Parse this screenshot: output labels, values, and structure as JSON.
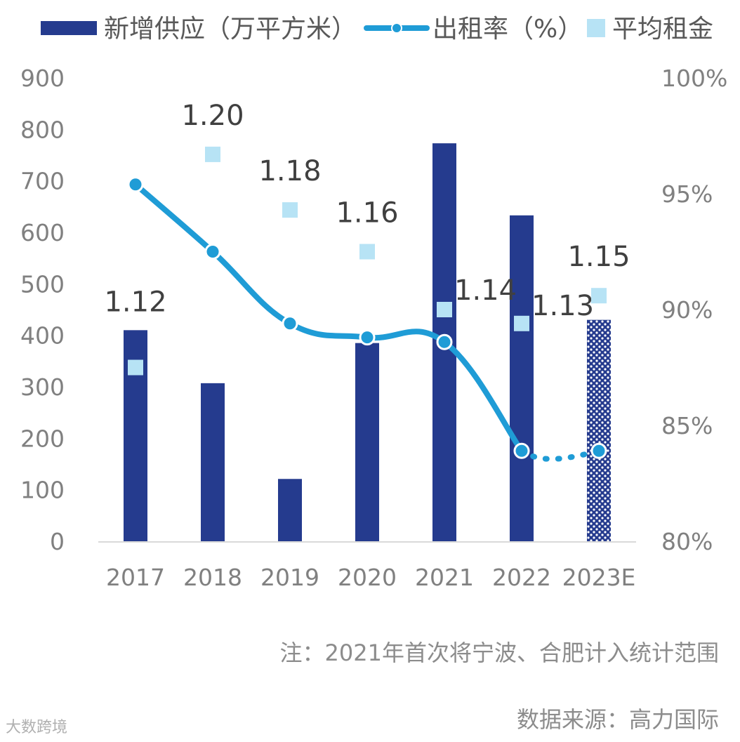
{
  "chart_data": {
    "type": "bar",
    "categories": [
      "2017",
      "2018",
      "2019",
      "2020",
      "2021",
      "2022",
      "2023E"
    ],
    "series": [
      {
        "name": "新增供应（万平方米）",
        "type": "bar",
        "axis": "left",
        "values": [
          410,
          307,
          121,
          385,
          773,
          633,
          430
        ],
        "forecast_from_index": 6
      },
      {
        "name": "出租率（%）",
        "type": "line",
        "axis": "right",
        "values": [
          95.4,
          92.5,
          89.4,
          88.8,
          88.6,
          83.9,
          83.9
        ],
        "dashed_from_index": 5
      },
      {
        "name": "平均租金",
        "type": "scatter",
        "axis": "right",
        "values": [
          87.5,
          96.7,
          94.3,
          92.5,
          90.0,
          89.4,
          90.6
        ],
        "labels": [
          "1.12",
          "1.20",
          "1.18",
          "1.16",
          "1.14",
          "1.13",
          "1.15"
        ]
      }
    ],
    "y_left": {
      "range": [
        0,
        900
      ],
      "ticks": [
        "0",
        "100",
        "200",
        "300",
        "400",
        "500",
        "600",
        "700",
        "800",
        "900"
      ]
    },
    "y_right": {
      "range": [
        80,
        100
      ],
      "ticks": [
        "80%",
        "85%",
        "90%",
        "95%",
        "100%"
      ],
      "tick_values": [
        80,
        85,
        90,
        95,
        100
      ]
    },
    "legend": {
      "placement": "top",
      "items": [
        "新增供应（万平方米）",
        "出租率（%）",
        "平均租金"
      ]
    },
    "colors": {
      "bar": "#253b8e",
      "line": "#1f9cd6",
      "marker": "#b7e3f5",
      "axis": "#d9d9d9"
    },
    "grid": false
  },
  "footnote": "注：2021年首次将宁波、合肥计入统计范围",
  "source": "数据来源：高力国际",
  "watermark": "大数跨境"
}
